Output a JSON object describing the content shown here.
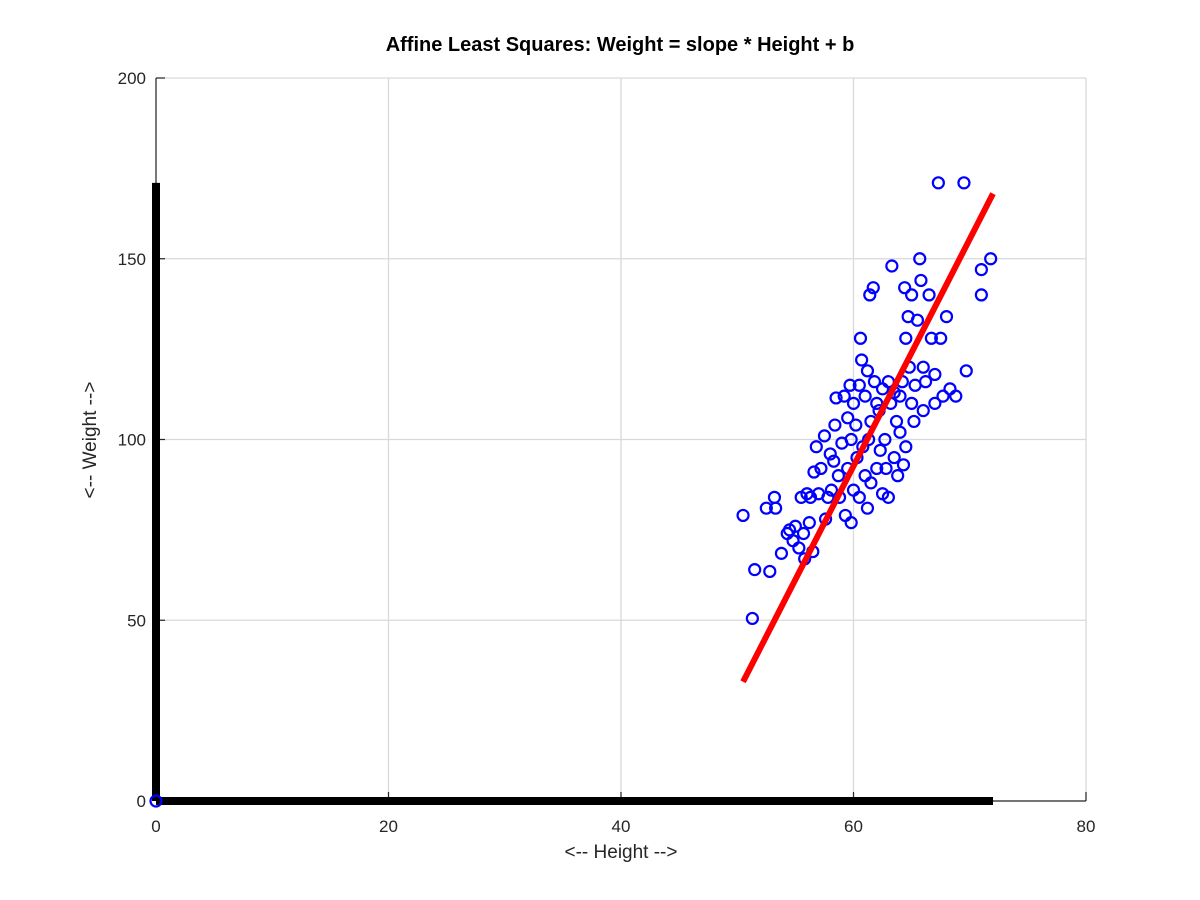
{
  "chart_data": {
    "type": "scatter",
    "title": "Affine Least Squares: Weight = slope * Height + b",
    "xlabel": "<-- Height -->",
    "ylabel": "<-- Weight -->",
    "xlim": [
      0,
      80
    ],
    "ylim": [
      0,
      200
    ],
    "xticks": [
      "0",
      "20",
      "40",
      "60",
      "80"
    ],
    "yticks": [
      "0",
      "50",
      "100",
      "150",
      "200"
    ],
    "grid": true,
    "colors": {
      "points": "#0000ff",
      "fit_line": "#ff0000",
      "axes_bars": "#000000",
      "grid": "#d9d9d9"
    },
    "axes_bars": {
      "x_bar": [
        [
          0,
          0
        ],
        [
          72,
          0
        ]
      ],
      "y_bar": [
        [
          0,
          0
        ],
        [
          0,
          171
        ]
      ]
    },
    "fit_line": {
      "x": [
        50.5,
        72
      ],
      "y": [
        33,
        168
      ]
    },
    "points": [
      [
        0,
        0
      ],
      [
        50.5,
        79
      ],
      [
        51.3,
        50.5
      ],
      [
        51.5,
        64
      ],
      [
        52.5,
        81
      ],
      [
        52.8,
        63.5
      ],
      [
        53.2,
        84
      ],
      [
        53.3,
        81
      ],
      [
        53.8,
        68.5
      ],
      [
        54.3,
        74
      ],
      [
        54.5,
        75
      ],
      [
        54.8,
        72
      ],
      [
        55,
        76
      ],
      [
        55.3,
        70
      ],
      [
        55.5,
        84
      ],
      [
        55.7,
        74
      ],
      [
        55.8,
        67
      ],
      [
        56,
        85
      ],
      [
        56.2,
        77
      ],
      [
        56.3,
        84
      ],
      [
        56.5,
        69
      ],
      [
        56.6,
        91
      ],
      [
        56.8,
        98
      ],
      [
        57,
        85
      ],
      [
        57.2,
        92
      ],
      [
        57.5,
        101
      ],
      [
        57.6,
        78
      ],
      [
        57.8,
        84
      ],
      [
        58,
        96
      ],
      [
        58.1,
        86
      ],
      [
        58.3,
        94
      ],
      [
        58.4,
        104
      ],
      [
        58.5,
        111.5
      ],
      [
        58.7,
        90
      ],
      [
        58.8,
        84
      ],
      [
        59,
        99
      ],
      [
        59.2,
        112
      ],
      [
        59.3,
        79
      ],
      [
        59.5,
        106
      ],
      [
        59.5,
        92
      ],
      [
        59.7,
        115
      ],
      [
        59.8,
        100
      ],
      [
        59.8,
        77
      ],
      [
        60,
        110
      ],
      [
        60,
        86
      ],
      [
        60.2,
        104
      ],
      [
        60.3,
        95
      ],
      [
        60.5,
        115
      ],
      [
        60.5,
        84
      ],
      [
        60.6,
        128
      ],
      [
        60.7,
        122
      ],
      [
        60.8,
        98
      ],
      [
        61,
        112
      ],
      [
        61,
        90
      ],
      [
        61.2,
        119
      ],
      [
        61.2,
        81
      ],
      [
        61.3,
        100
      ],
      [
        61.4,
        140
      ],
      [
        61.5,
        105
      ],
      [
        61.5,
        88
      ],
      [
        61.7,
        142
      ],
      [
        61.8,
        116
      ],
      [
        62,
        110
      ],
      [
        62,
        92
      ],
      [
        62.2,
        108
      ],
      [
        62.3,
        97
      ],
      [
        62.5,
        114
      ],
      [
        62.5,
        85
      ],
      [
        62.7,
        100
      ],
      [
        62.8,
        92
      ],
      [
        63,
        116
      ],
      [
        63,
        84
      ],
      [
        63.2,
        110
      ],
      [
        63.3,
        148
      ],
      [
        63.5,
        113
      ],
      [
        63.5,
        95
      ],
      [
        63.7,
        105
      ],
      [
        63.8,
        90
      ],
      [
        64,
        112
      ],
      [
        64,
        102
      ],
      [
        64.2,
        116
      ],
      [
        64.3,
        93
      ],
      [
        64.4,
        142
      ],
      [
        64.5,
        128
      ],
      [
        64.5,
        98
      ],
      [
        64.7,
        134
      ],
      [
        64.8,
        120
      ],
      [
        65,
        110
      ],
      [
        65,
        140
      ],
      [
        65.2,
        105
      ],
      [
        65.3,
        115
      ],
      [
        65.5,
        133
      ],
      [
        65.7,
        150
      ],
      [
        65.8,
        144
      ],
      [
        66,
        120
      ],
      [
        66,
        108
      ],
      [
        66.2,
        116
      ],
      [
        66.5,
        140
      ],
      [
        66.7,
        128
      ],
      [
        67,
        118
      ],
      [
        67,
        110
      ],
      [
        67.3,
        171
      ],
      [
        67.5,
        128
      ],
      [
        67.7,
        112
      ],
      [
        68,
        134
      ],
      [
        68.3,
        114
      ],
      [
        68.8,
        112
      ],
      [
        69.5,
        171
      ],
      [
        69.7,
        119
      ],
      [
        71,
        147
      ],
      [
        71,
        140
      ],
      [
        71.8,
        150
      ]
    ]
  }
}
